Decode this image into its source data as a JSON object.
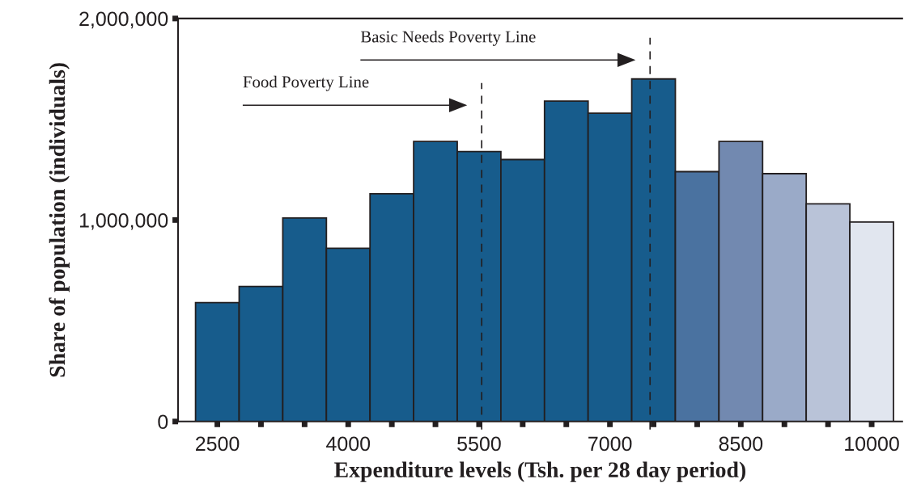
{
  "chart_data": {
    "type": "histogram",
    "xlabel": "Expenditure levels (Tsh. per 28 day period)",
    "ylabel": "Share of population (individuals)",
    "bins": [
      2250,
      2750,
      3250,
      3750,
      4250,
      4750,
      5250,
      5750,
      6250,
      6750,
      7250,
      7750,
      8250,
      8750,
      9250,
      9750,
      10250
    ],
    "values": [
      590000,
      670000,
      1010000,
      860000,
      1130000,
      1390000,
      1340000,
      1300000,
      1590000,
      1530000,
      1700000,
      1240000,
      1390000,
      1230000,
      1080000,
      990000
    ],
    "colors": [
      "#175c8c",
      "#175c8c",
      "#175c8c",
      "#175c8c",
      "#175c8c",
      "#175c8c",
      "#175c8c",
      "#175c8c",
      "#175c8c",
      "#175c8c",
      "#175c8c",
      "#4a72a0",
      "#7289b0",
      "#9aaac8",
      "#b9c3d8",
      "#e1e6ef"
    ],
    "xlim": [
      2050,
      10350
    ],
    "xticks": [
      2500,
      {
        "value": 3000,
        "label": null
      },
      {
        "value": 3500,
        "label": null
      },
      4000,
      {
        "value": 4500,
        "label": null
      },
      {
        "value": 5000,
        "label": null
      },
      5500,
      {
        "value": 6000,
        "label": null
      },
      {
        "value": 6500,
        "label": null
      },
      7000,
      {
        "value": 7500,
        "label": null
      },
      {
        "value": 8000,
        "label": null
      },
      8500,
      {
        "value": 9000,
        "label": null
      },
      {
        "value": 9500,
        "label": null
      },
      10000
    ],
    "ylim": [
      0,
      2000000
    ],
    "yticks": [
      0,
      {
        "value": 1000000,
        "label": "1,000,000"
      },
      {
        "value": 2000000,
        "label": "2,000,000"
      }
    ],
    "ref_lines": [
      {
        "axis": "x",
        "value": 5530,
        "line_style": "dashed",
        "color": "#231f20"
      },
      {
        "axis": "x",
        "value": 7460,
        "line_style": "dashed",
        "color": "#231f20"
      }
    ],
    "annotations": [
      "Food Poverty Line",
      "Basic Needs Poverty Line"
    ],
    "grid": false,
    "legend": false
  }
}
